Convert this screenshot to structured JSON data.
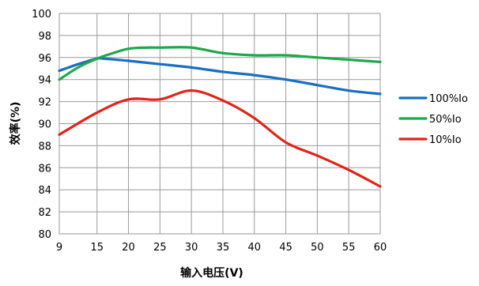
{
  "chart_data": {
    "type": "line",
    "title": "",
    "xlabel": "输入电压(V)",
    "ylabel": "效率(%)",
    "xlim": [
      9,
      60
    ],
    "ylim": [
      80,
      100
    ],
    "x_ticks": [
      9,
      15,
      20,
      25,
      30,
      35,
      40,
      45,
      50,
      55,
      60
    ],
    "y_ticks": [
      80,
      82,
      84,
      86,
      88,
      90,
      92,
      94,
      96,
      98,
      100
    ],
    "grid": true,
    "legend_position": "right",
    "series": [
      {
        "name": "100%Io",
        "color": "#1a6fc0",
        "x": [
          9,
          12,
          15,
          16,
          20,
          25,
          30,
          35,
          40,
          45,
          50,
          55,
          60
        ],
        "y": [
          94.8,
          95.4,
          95.9,
          95.9,
          95.7,
          95.4,
          95.1,
          94.7,
          94.4,
          94.0,
          93.5,
          93.0,
          92.7
        ]
      },
      {
        "name": "50%Io",
        "color": "#1fa84a",
        "x": [
          9,
          12,
          15,
          17,
          20,
          23,
          25,
          30,
          35,
          40,
          45,
          50,
          55,
          60
        ],
        "y": [
          94.0,
          95.1,
          95.9,
          96.3,
          96.8,
          96.9,
          96.9,
          96.9,
          96.4,
          96.2,
          96.2,
          96.0,
          95.8,
          95.6
        ]
      },
      {
        "name": "10%Io",
        "color": "#e32219",
        "x": [
          9,
          15,
          20,
          25,
          30,
          35,
          40,
          45,
          50,
          55,
          60
        ],
        "y": [
          89.0,
          91.0,
          92.2,
          92.2,
          93.0,
          92.1,
          90.5,
          88.3,
          87.1,
          85.8,
          84.3
        ]
      }
    ]
  }
}
